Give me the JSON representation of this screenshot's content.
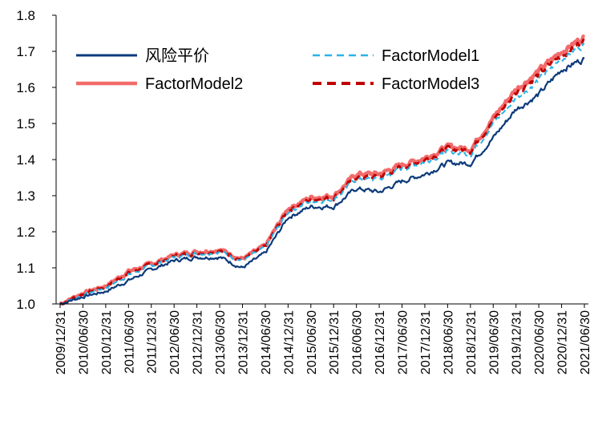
{
  "chart_data": {
    "type": "line",
    "title": "",
    "xlabel": "",
    "ylabel": "",
    "ylim": [
      1.0,
      1.8
    ],
    "yticks": [
      "1.0",
      "1.1",
      "1.2",
      "1.3",
      "1.4",
      "1.5",
      "1.6",
      "1.7",
      "1.8"
    ],
    "grid": false,
    "legend_position": "top",
    "categories": [
      "2009/12/31",
      "2010/06/30",
      "2010/12/31",
      "2011/06/30",
      "2011/12/31",
      "2012/06/30",
      "2012/12/31",
      "2013/06/30",
      "2013/12/31",
      "2014/06/30",
      "2014/12/31",
      "2015/06/30",
      "2015/12/31",
      "2016/06/30",
      "2016/12/31",
      "2017/06/30",
      "2017/12/31",
      "2018/06/30",
      "2018/12/31",
      "2019/06/30",
      "2019/12/31",
      "2020/06/30",
      "2020/12/31",
      "2021/06/30"
    ],
    "series": [
      {
        "name": "风险平价",
        "color": "#0b3a7a",
        "style": "solid",
        "values": [
          1.0,
          1.02,
          1.035,
          1.065,
          1.095,
          1.12,
          1.13,
          1.13,
          1.1,
          1.14,
          1.24,
          1.27,
          1.27,
          1.32,
          1.31,
          1.34,
          1.36,
          1.39,
          1.39,
          1.46,
          1.54,
          1.58,
          1.65,
          1.68
        ]
      },
      {
        "name": "FactorModel1",
        "color": "#29b3e8",
        "style": "dashed",
        "values": [
          1.0,
          1.025,
          1.045,
          1.08,
          1.105,
          1.13,
          1.14,
          1.145,
          1.12,
          1.155,
          1.255,
          1.285,
          1.29,
          1.345,
          1.345,
          1.375,
          1.395,
          1.42,
          1.415,
          1.5,
          1.57,
          1.62,
          1.68,
          1.72
        ]
      },
      {
        "name": "FactorModel2",
        "color": "#f26b6b",
        "style": "solid",
        "values": [
          1.0,
          1.03,
          1.05,
          1.09,
          1.11,
          1.135,
          1.145,
          1.15,
          1.125,
          1.16,
          1.265,
          1.295,
          1.3,
          1.36,
          1.36,
          1.385,
          1.405,
          1.435,
          1.43,
          1.515,
          1.595,
          1.645,
          1.7,
          1.74
        ]
      },
      {
        "name": "FactorModel3",
        "color": "#c00000",
        "style": "dashed",
        "values": [
          1.0,
          1.028,
          1.048,
          1.085,
          1.108,
          1.132,
          1.142,
          1.148,
          1.122,
          1.158,
          1.26,
          1.29,
          1.295,
          1.352,
          1.352,
          1.38,
          1.4,
          1.43,
          1.425,
          1.508,
          1.585,
          1.635,
          1.69,
          1.73
        ]
      }
    ]
  }
}
